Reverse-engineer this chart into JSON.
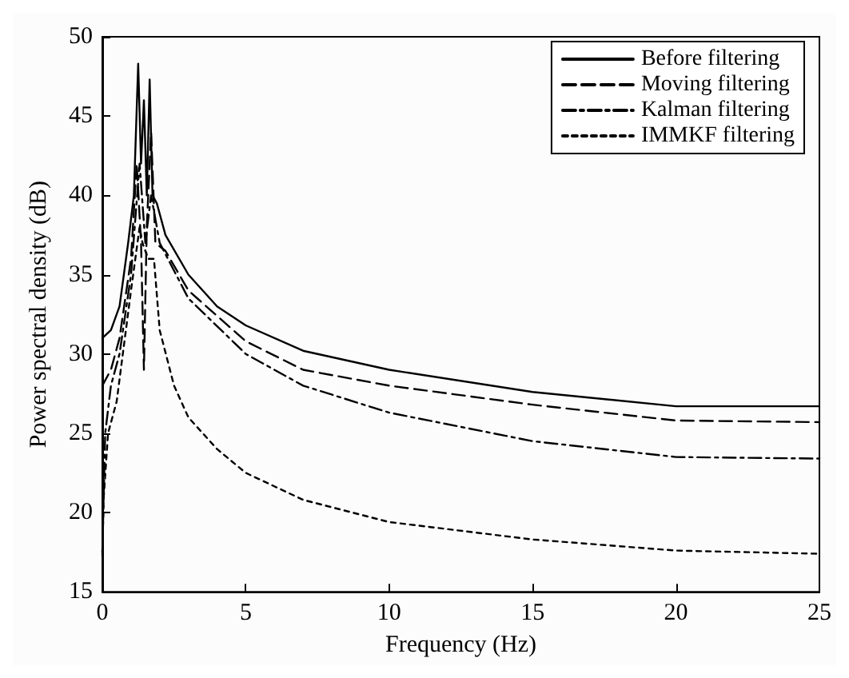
{
  "chart_data": {
    "type": "line",
    "xlabel": "Frequency (Hz)",
    "ylabel": "Power spectral density (dB)",
    "xlim": [
      0,
      25
    ],
    "xticks": [
      0,
      5,
      10,
      15,
      20,
      25
    ],
    "ylim": [
      15,
      50
    ],
    "yticks": [
      15,
      20,
      25,
      30,
      35,
      40,
      45,
      50
    ],
    "grid": false,
    "legend": "top right",
    "marker": "none",
    "series": [
      {
        "name": "Before filtering",
        "color": "#000000",
        "line_style": "solid",
        "x": [
          0,
          0.3,
          0.6,
          0.9,
          1.1,
          1.25,
          1.35,
          1.45,
          1.55,
          1.65,
          1.75,
          1.9,
          2.2,
          3,
          4,
          5,
          7,
          10,
          15,
          20,
          25
        ],
        "values": [
          31,
          31.5,
          33,
          37,
          40,
          48.3,
          42,
          46,
          40,
          47.3,
          40,
          39.5,
          37.5,
          35,
          33,
          31.8,
          30.2,
          29,
          27.6,
          26.7,
          26.7
        ]
      },
      {
        "name": "Moving filtering",
        "color": "#000000",
        "line_style": "dashed",
        "x": [
          0,
          0.3,
          0.6,
          1,
          1.2,
          1.35,
          1.45,
          1.55,
          1.7,
          1.85,
          2.2,
          3,
          5,
          7,
          10,
          15,
          20,
          25
        ],
        "values": [
          28,
          29,
          31,
          36,
          42,
          37,
          29,
          38,
          44,
          37,
          36.5,
          34,
          30.8,
          29,
          28,
          26.8,
          25.8,
          25.7
        ]
      },
      {
        "name": "Kalman filtering",
        "color": "#000000",
        "line_style": "dashdot",
        "x": [
          0,
          0.1,
          0.3,
          0.6,
          1,
          1.3,
          1.5,
          1.7,
          2,
          3,
          5,
          7,
          10,
          15,
          20,
          25
        ],
        "values": [
          17.5,
          25,
          28,
          30,
          35,
          42,
          37,
          40,
          37,
          33.5,
          30,
          28,
          26.3,
          24.5,
          23.5,
          23.4
        ]
      },
      {
        "name": "IMMKF filtering",
        "color": "#000000",
        "line_style": "dotted",
        "x": [
          0,
          0.05,
          0.2,
          0.5,
          1,
          1.3,
          1.4,
          1.6,
          1.8,
          2,
          2.5,
          3,
          4,
          5,
          7,
          10,
          15,
          20,
          25
        ],
        "values": [
          17.3,
          21,
          25,
          27,
          34,
          38,
          37,
          36,
          36,
          31.5,
          28,
          26,
          24,
          22.5,
          20.8,
          19.4,
          18.3,
          17.6,
          17.4
        ]
      }
    ]
  }
}
